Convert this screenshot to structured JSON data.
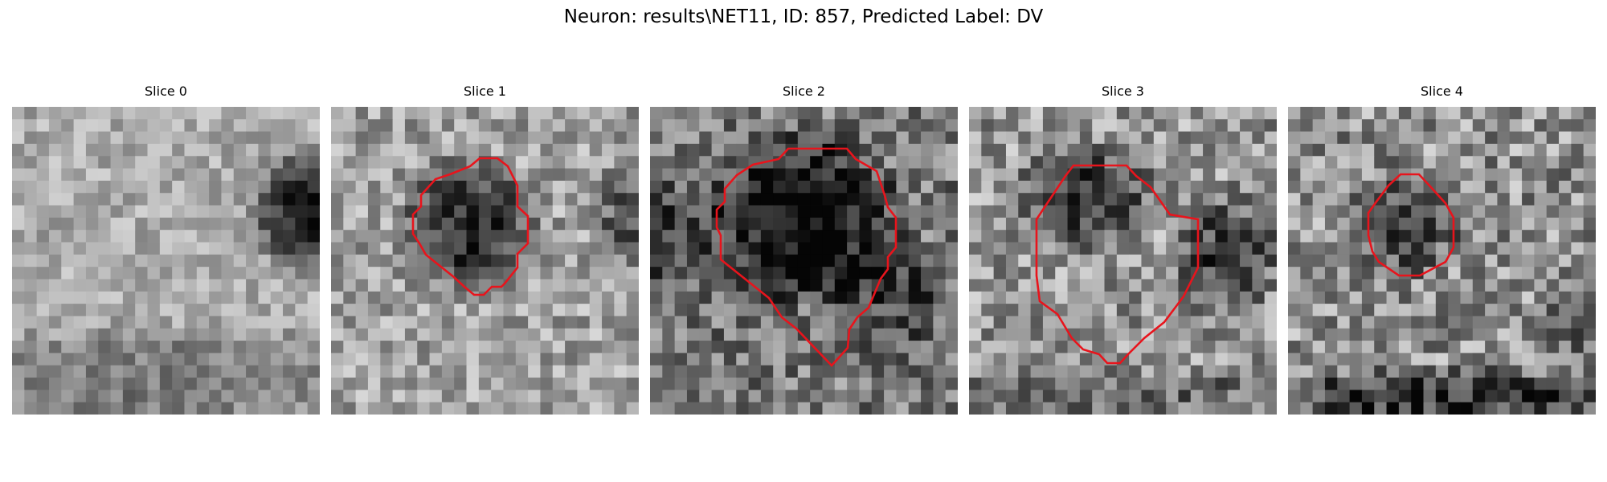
{
  "figure": {
    "title": "Neuron: results\\NET11, ID: 857, Predicted Label: DV",
    "contour_color": "#e8141c",
    "colormap": "gray"
  },
  "slices": [
    {
      "label": "Slice 0",
      "has_contour": false
    },
    {
      "label": "Slice 1",
      "has_contour": true
    },
    {
      "label": "Slice 2",
      "has_contour": true
    },
    {
      "label": "Slice 3",
      "has_contour": true
    },
    {
      "label": "Slice 4",
      "has_contour": true
    }
  ]
}
